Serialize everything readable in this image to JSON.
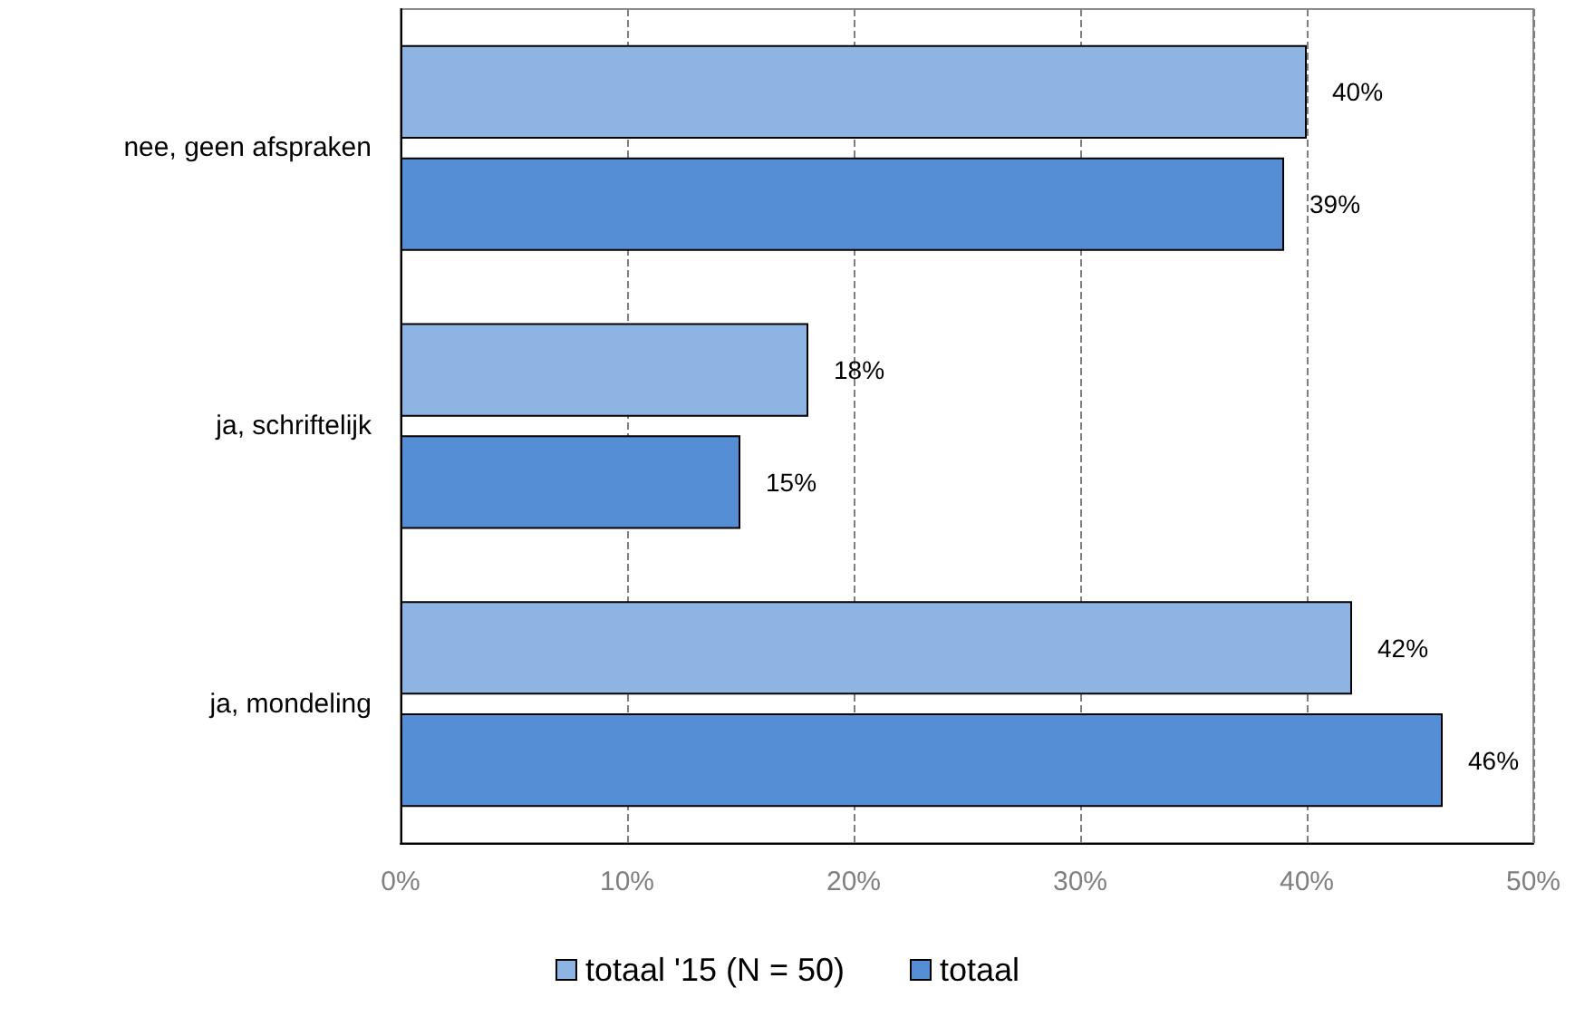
{
  "chart_data": {
    "type": "bar",
    "orientation": "horizontal",
    "categories": [
      "nee, geen afspraken",
      "ja, schriftelijk",
      "ja, mondeling"
    ],
    "series": [
      {
        "name": "totaal '15 (N = 50)",
        "color": "#8db4e2",
        "values": [
          40,
          18,
          42
        ],
        "value_labels": [
          "40%",
          "18%",
          "42%"
        ]
      },
      {
        "name": "totaal",
        "color": "#558ed5",
        "values": [
          39,
          15,
          46
        ],
        "value_labels": [
          "39%",
          "15%",
          "46%"
        ]
      }
    ],
    "xlim": [
      0,
      50
    ],
    "xticks": [
      {
        "value": 0,
        "label": "0%"
      },
      {
        "value": 10,
        "label": "10%"
      },
      {
        "value": 20,
        "label": "20%"
      },
      {
        "value": 30,
        "label": "30%"
      },
      {
        "value": 40,
        "label": "40%"
      },
      {
        "value": 50,
        "label": "50%"
      }
    ],
    "grid": "x",
    "legend": "bottom"
  }
}
